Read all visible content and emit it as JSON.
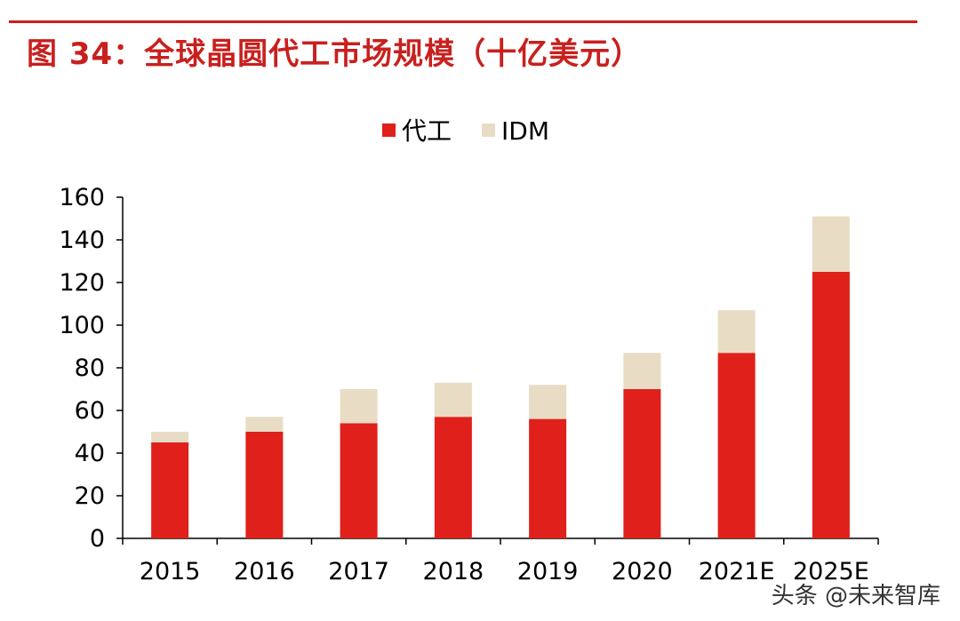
{
  "title": "图 34：全球晶圆代工市场规模（十亿美元）",
  "watermark": "头条 @未来智库",
  "colors": {
    "foundry": "#e0201a",
    "idm": "#e8dcc5",
    "title": "#c8201e"
  },
  "chart_data": {
    "type": "bar",
    "stacked": true,
    "title": "",
    "categories": [
      "2015",
      "2016",
      "2017",
      "2018",
      "2019",
      "2020",
      "2021E",
      "2025E"
    ],
    "series": [
      {
        "name": "代工",
        "values": [
          45,
          50,
          54,
          57,
          56,
          70,
          87,
          125
        ]
      },
      {
        "name": "IDM",
        "values": [
          5,
          7,
          16,
          16,
          16,
          17,
          20,
          26
        ]
      }
    ],
    "ylim": [
      0,
      160
    ],
    "yticks": [
      0,
      20,
      40,
      60,
      80,
      100,
      120,
      140,
      160
    ],
    "legend": "top",
    "grid": false
  }
}
